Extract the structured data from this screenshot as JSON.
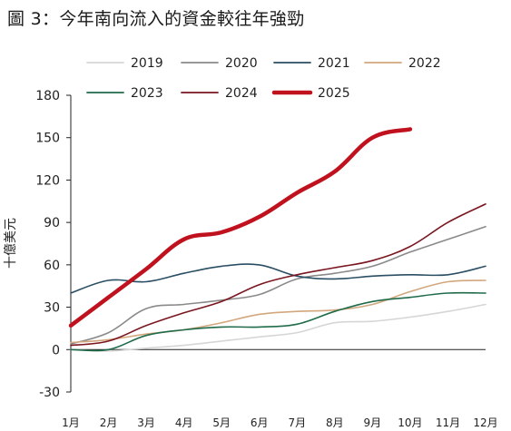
{
  "title": "圖 3：今年南向流入的資金較往年強勁",
  "chart_data": {
    "type": "line",
    "title": "圖 3：今年南向流入的資金較往年強勁",
    "xlabel": "",
    "ylabel": "十億美元",
    "categories": [
      "1月",
      "2月",
      "3月",
      "4月",
      "5月",
      "6月",
      "7月",
      "8月",
      "9月",
      "10月",
      "11月",
      "12月"
    ],
    "ylim": [
      -30,
      180
    ],
    "yticks": [
      -30,
      0,
      30,
      60,
      90,
      120,
      150,
      180
    ],
    "grid": false,
    "legend_position": "top",
    "series": [
      {
        "name": "2019",
        "color": "#d6d6d6",
        "stroke": 1.6,
        "values": [
          0,
          -1,
          1,
          3,
          6,
          9,
          12,
          19,
          20,
          23,
          27,
          32
        ]
      },
      {
        "name": "2020",
        "color": "#8a8a8a",
        "stroke": 1.6,
        "values": [
          4,
          12,
          29,
          32,
          35,
          39,
          50,
          54,
          59,
          69,
          78,
          87
        ]
      },
      {
        "name": "2021",
        "color": "#2a4e63",
        "stroke": 1.6,
        "values": [
          40,
          49,
          48,
          54,
          59,
          60,
          52,
          50,
          52,
          53,
          53,
          59
        ]
      },
      {
        "name": "2022",
        "color": "#d2a77d",
        "stroke": 1.6,
        "values": [
          5,
          7,
          11,
          14,
          19,
          25,
          27,
          28,
          32,
          41,
          48,
          49
        ]
      },
      {
        "name": "2023",
        "color": "#1f6b4a",
        "stroke": 1.6,
        "values": [
          0,
          0,
          10,
          14,
          16,
          16,
          18,
          27,
          34,
          37,
          40,
          40
        ]
      },
      {
        "name": "2024",
        "color": "#7a1620",
        "stroke": 1.6,
        "values": [
          3,
          6,
          17,
          26,
          34,
          46,
          53,
          58,
          63,
          73,
          90,
          103
        ]
      },
      {
        "name": "2025",
        "color": "#c0121e",
        "stroke": 4.5,
        "values": [
          17,
          37,
          57,
          78,
          83,
          94,
          111,
          126,
          150,
          156,
          null,
          null
        ]
      }
    ]
  }
}
